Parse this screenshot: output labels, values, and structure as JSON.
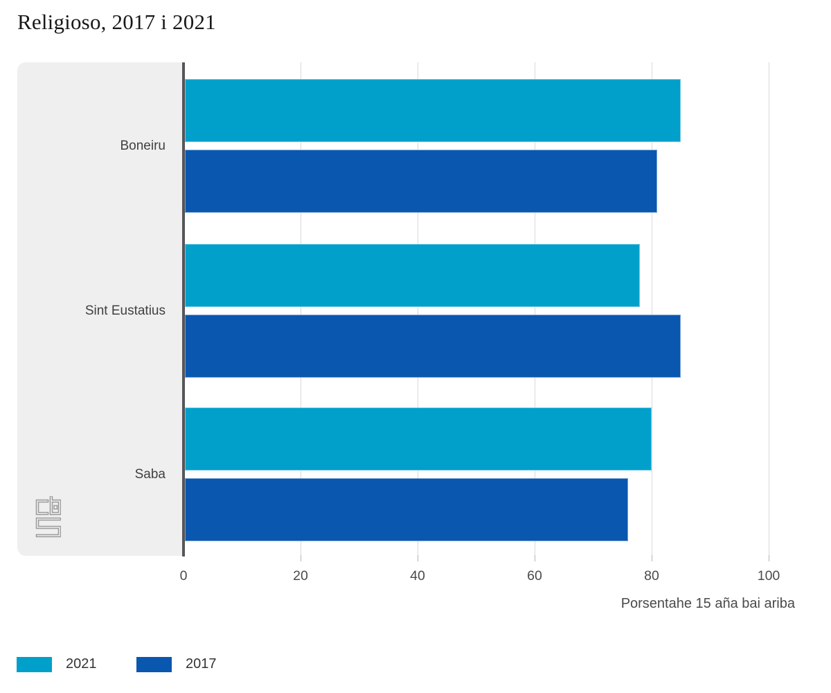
{
  "title": "Religioso, 2017 i 2021",
  "chart_data": {
    "type": "bar",
    "orientation": "horizontal",
    "title": "Religioso, 2017 i 2021",
    "categories": [
      "Boneiru",
      "Sint Eustatius",
      "Saba"
    ],
    "series": [
      {
        "name": "2021",
        "color": "#00a0cb",
        "values": [
          85,
          78,
          80
        ]
      },
      {
        "name": "2017",
        "color": "#0a57b0",
        "values": [
          81,
          85,
          76
        ]
      }
    ],
    "xlabel": "Porsentahe 15 aña bai ariba",
    "ylabel": "",
    "xlim": [
      0,
      100
    ],
    "xticks": [
      0,
      20,
      40,
      60,
      80,
      100
    ],
    "grid": true,
    "legend_position": "bottom-left"
  },
  "legend": [
    {
      "label": "2021",
      "color": "#00a0cb"
    },
    {
      "label": "2017",
      "color": "#0a57b0"
    }
  ],
  "branding": {
    "logo_icon": "cbs-logo",
    "logo_color": "#9a9a9a"
  },
  "colors": {
    "panel_background": "#efefef",
    "axis_line": "#55565a",
    "gridline": "#d9d9d9",
    "text": "#404040",
    "title_text": "#181818"
  }
}
